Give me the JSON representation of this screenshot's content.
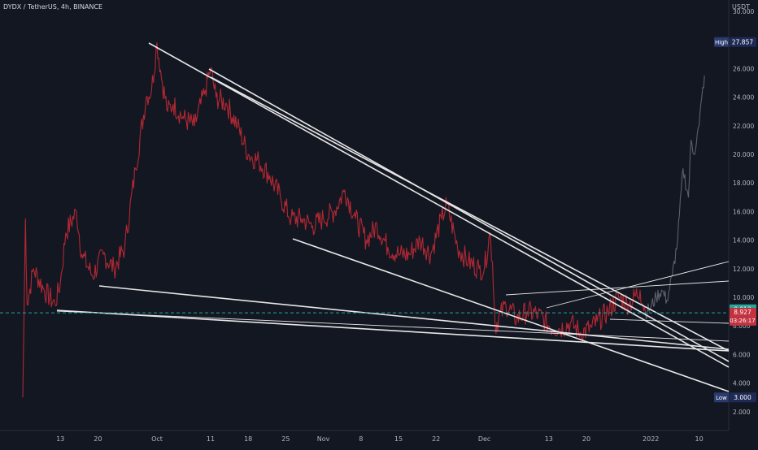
{
  "header": {
    "title": "DYDX / TetherUS, 4h, BINANCE",
    "currency": "USDT"
  },
  "chart_data": {
    "type": "line",
    "title": "DYDX / TetherUS, 4h, BINANCE",
    "xlabel": "",
    "ylabel": "",
    "unit": "USDT",
    "ylim": [
      1.0,
      31.0
    ],
    "grid": false,
    "y_ticks": [
      "2.000",
      "4.000",
      "6.000",
      "8.000",
      "10.000",
      "12.000",
      "14.000",
      "16.000",
      "18.000",
      "20.000",
      "22.000",
      "24.000",
      "26.000",
      "28.000",
      "30.000"
    ],
    "x_ticks": [
      "13",
      "20",
      "Oct",
      "11",
      "18",
      "25",
      "Nov",
      "8",
      "15",
      "22",
      "Dec",
      "13",
      "20",
      "2022",
      "10"
    ],
    "x_tick_days": [
      -18,
      -11,
      0,
      10,
      17,
      24,
      31,
      38,
      45,
      52,
      61,
      73,
      80,
      92,
      101
    ],
    "series": [
      {
        "color": "#b22833",
        "x": [
          -25,
          -24.5,
          -24.2,
          -23,
          -21,
          -19,
          -18,
          -17,
          -15,
          -14,
          -12,
          -10,
          -8,
          -6,
          -4,
          -2,
          -1,
          0,
          1,
          2,
          3,
          5,
          7,
          9,
          10,
          11,
          13,
          15,
          17,
          19,
          21,
          23,
          25,
          27,
          29,
          31,
          33,
          35,
          37,
          39,
          41,
          43,
          45,
          47,
          49,
          51,
          53,
          54,
          56,
          58,
          60,
          61,
          62,
          62.5,
          63,
          65,
          67,
          69,
          71,
          73,
          75,
          77,
          79,
          81,
          82,
          84,
          86,
          88,
          90,
          91
        ],
        "y": [
          3.0,
          15.5,
          9.5,
          12.0,
          10.5,
          9.5,
          11.0,
          14.5,
          16.0,
          13.0,
          11.5,
          13.0,
          12.0,
          13.5,
          19.0,
          24.0,
          24.5,
          27.8,
          25.0,
          23.0,
          23.5,
          22.5,
          22.0,
          24.5,
          26.0,
          24.0,
          23.5,
          22.0,
          20.0,
          19.5,
          18.5,
          17.0,
          15.5,
          15.5,
          15.0,
          15.5,
          16.0,
          17.5,
          15.5,
          14.0,
          15.0,
          13.5,
          13.0,
          13.0,
          14.0,
          13.0,
          15.5,
          16.5,
          13.5,
          12.5,
          12.0,
          12.0,
          14.5,
          12.5,
          8.0,
          9.5,
          8.5,
          9.0,
          8.8,
          8.0,
          7.8,
          8.2,
          7.5,
          7.9,
          8.3,
          9.0,
          10.0,
          9.5,
          10.5,
          8.9
        ]
      },
      {
        "color": "#5d606b",
        "x": [
          91,
          92,
          93,
          94,
          95,
          96,
          97,
          98,
          99,
          99.5,
          100,
          101,
          101.5,
          102
        ],
        "y": [
          8.9,
          9.3,
          10.0,
          10.5,
          9.8,
          11.5,
          14.0,
          19.0,
          17.0,
          21.0,
          20.0,
          22.0,
          24.0,
          25.5
        ]
      }
    ],
    "high": {
      "label": "High",
      "value": "27.857"
    },
    "low": {
      "label": "Low",
      "value": "3.000"
    },
    "current_price": {
      "value": "8.927",
      "countdown": "03:26:17",
      "line_value": "8.913"
    },
    "trendlines_note": "white wedge/channel lines drawn by author"
  }
}
